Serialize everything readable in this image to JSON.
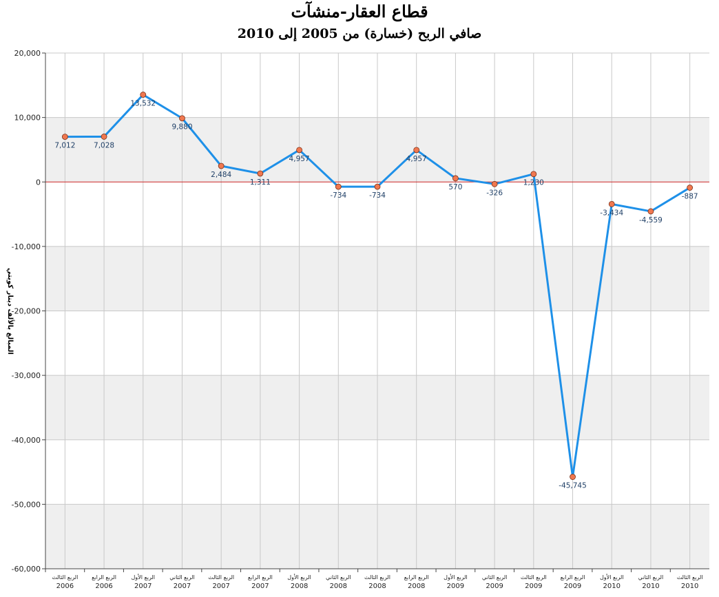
{
  "chart_data": {
    "type": "line",
    "title": "قطاع العقار-منشآت",
    "subtitle": "صافي الربح (خسارة) من 2005 إلى 2010",
    "ylabel": "المبالغ بالألف دينار كويتي",
    "xlabel": "",
    "ylim": [
      -60000,
      20000
    ],
    "yticks": [
      20000,
      10000,
      0,
      -10000,
      -20000,
      -30000,
      -40000,
      -50000,
      -60000
    ],
    "ytick_labels": [
      "20,000",
      "10,000",
      "0",
      "-10,000",
      "-20,000",
      "-30,000",
      "-40,000",
      "-50,000",
      "-60,000"
    ],
    "grid": true,
    "legend": "none",
    "categories": [
      {
        "quarter": "الربع الثالث",
        "year": "2006"
      },
      {
        "quarter": "الربع الرابع",
        "year": "2006"
      },
      {
        "quarter": "الربع الأول",
        "year": "2007"
      },
      {
        "quarter": "الربع الثاني",
        "year": "2007"
      },
      {
        "quarter": "الربع الثالث",
        "year": "2007"
      },
      {
        "quarter": "الربع الرابع",
        "year": "2007"
      },
      {
        "quarter": "الربع الأول",
        "year": "2008"
      },
      {
        "quarter": "الربع الثاني",
        "year": "2008"
      },
      {
        "quarter": "الربع الثالث",
        "year": "2008"
      },
      {
        "quarter": "الربع الرابع",
        "year": "2008"
      },
      {
        "quarter": "الربع الأول",
        "year": "2009"
      },
      {
        "quarter": "الربع الثاني",
        "year": "2009"
      },
      {
        "quarter": "الربع الثالث",
        "year": "2009"
      },
      {
        "quarter": "الربع الرابع",
        "year": "2009"
      },
      {
        "quarter": "الربع الأول",
        "year": "2010"
      },
      {
        "quarter": "الربع الثاني",
        "year": "2010"
      },
      {
        "quarter": "الربع الثالث",
        "year": "2010"
      }
    ],
    "series": [
      {
        "values": [
          7012,
          7028,
          13532,
          9880,
          2484,
          1311,
          4957,
          -734,
          -734,
          4957,
          570,
          -326,
          1230,
          -45745,
          -3434,
          -4559,
          -887
        ],
        "labels": [
          "7,012",
          "7,028",
          "13,532",
          "9,880",
          "2,484",
          "1,311",
          "4,957",
          "-734",
          "-734",
          "4,957",
          "570",
          "-326",
          "1,230",
          "-45,745",
          "-3,434",
          "-4,559",
          "-887"
        ],
        "color": "#1e90e8",
        "marker_color": "#f07850"
      }
    ],
    "colors": {
      "zero_line": "#cc2222",
      "band": "#efefef",
      "grid": "#c8c8c8",
      "axis": "#444444"
    }
  }
}
